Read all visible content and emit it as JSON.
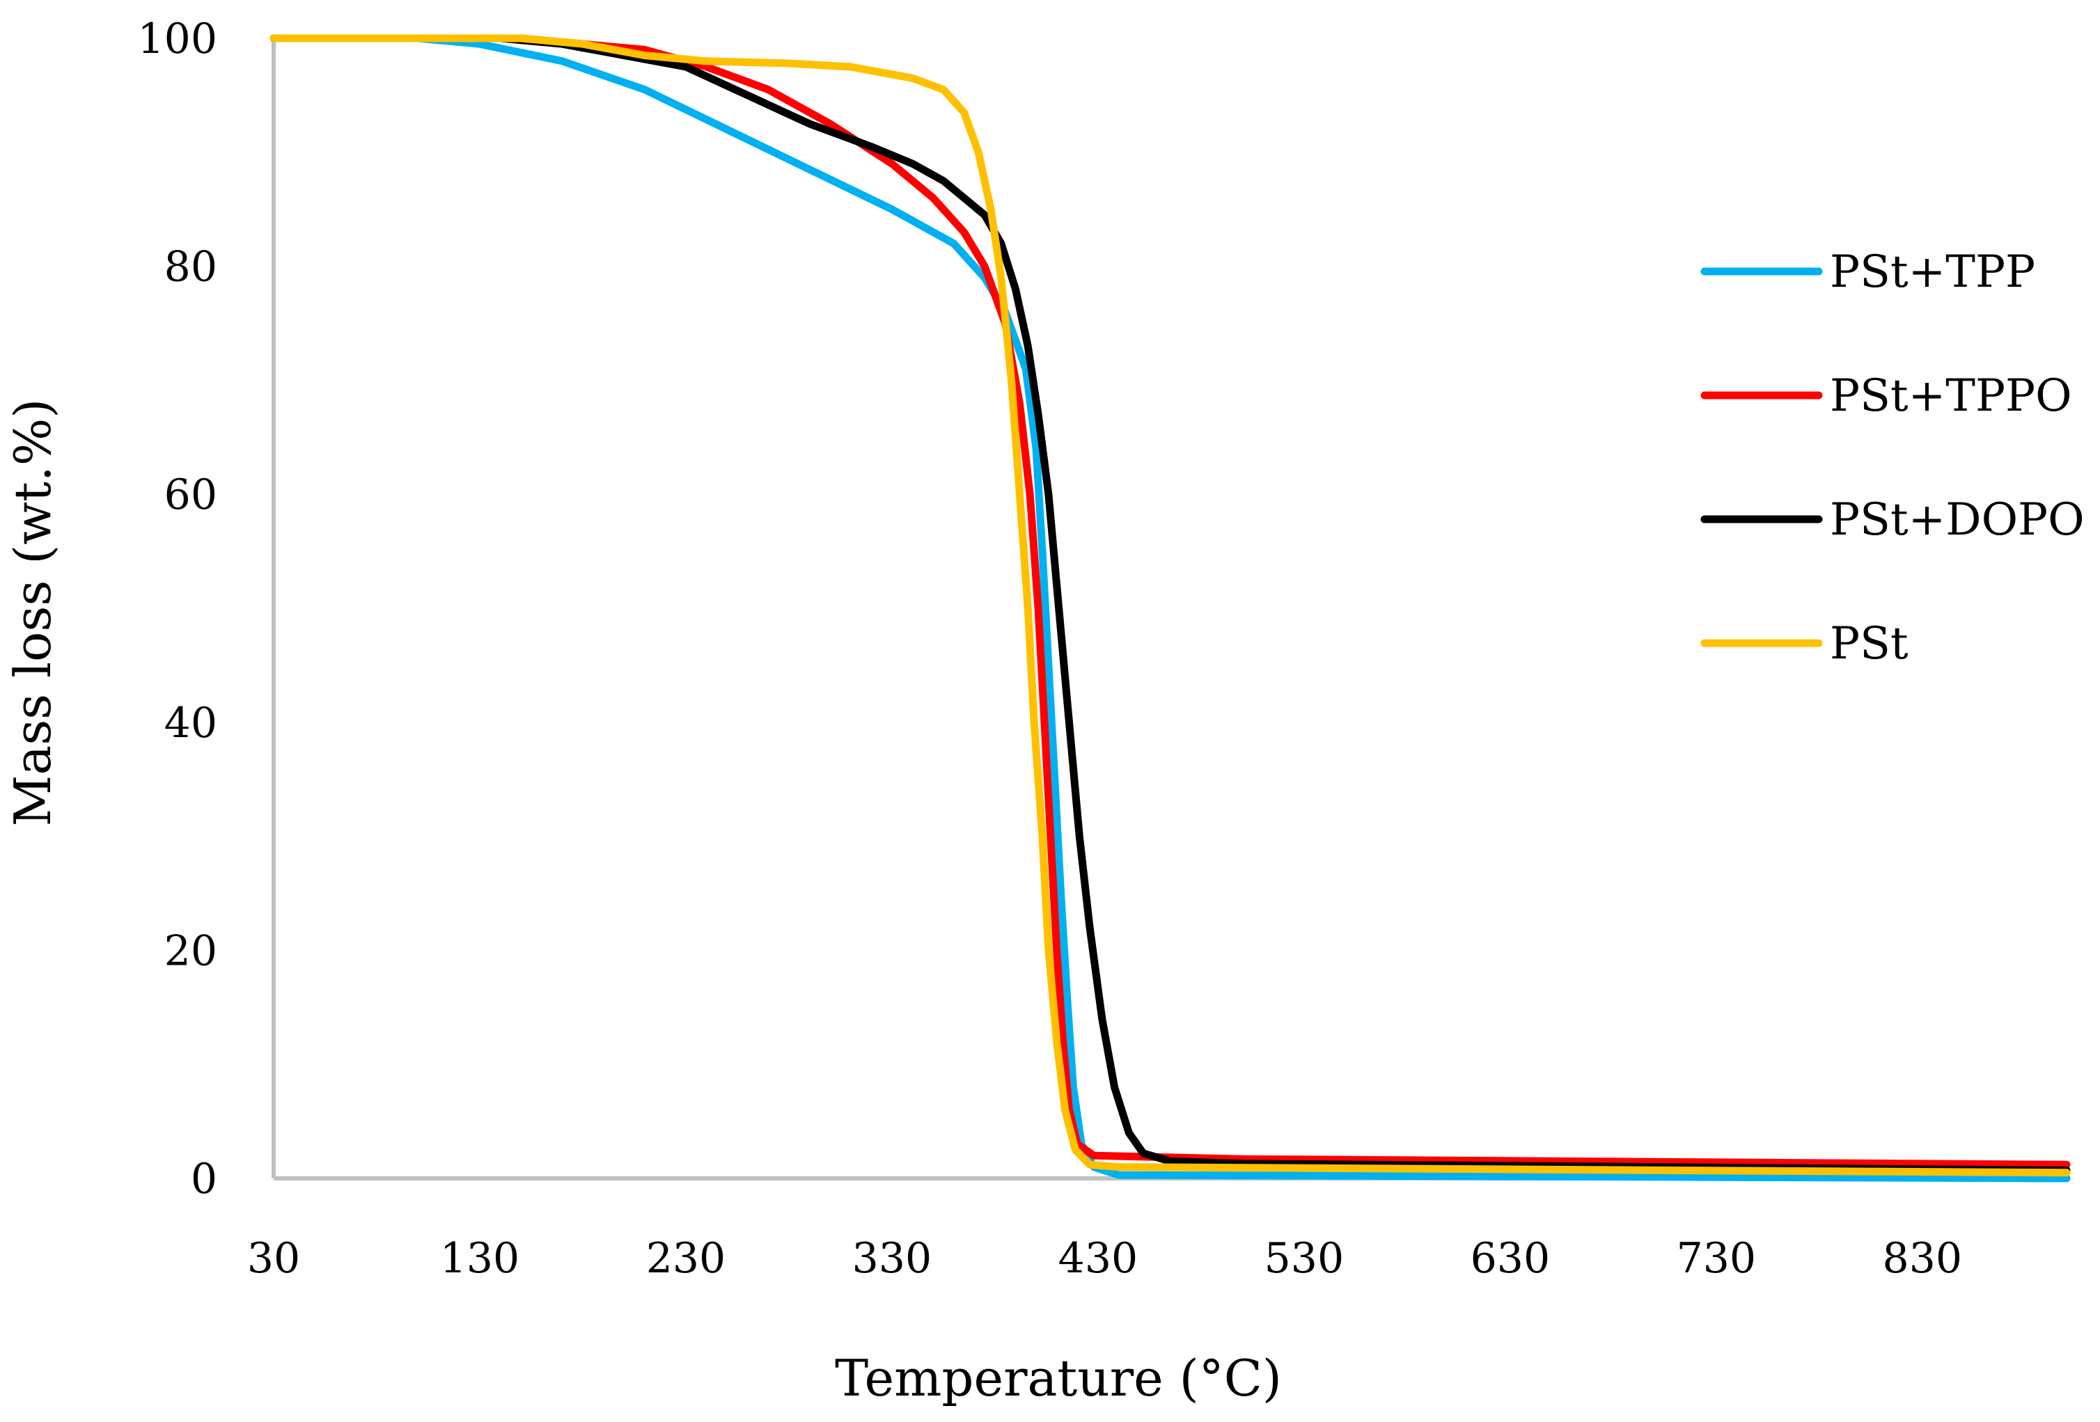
{
  "chart_data": {
    "type": "line",
    "title": "",
    "xlabel": "Temperature (°C)",
    "ylabel": "Mass loss (wt.%)",
    "xlim": [
      30,
      900
    ],
    "ylim": [
      0,
      100
    ],
    "x_ticks": [
      30,
      130,
      230,
      330,
      430,
      530,
      630,
      730,
      830
    ],
    "y_ticks": [
      0,
      20,
      40,
      60,
      80,
      100
    ],
    "grid": false,
    "legend_position": "right",
    "series": [
      {
        "name": "PSt+TPP",
        "color": "#00b0f0",
        "points": [
          [
            30,
            100
          ],
          [
            100,
            100
          ],
          [
            130,
            99.5
          ],
          [
            170,
            98
          ],
          [
            210,
            95.5
          ],
          [
            250,
            92
          ],
          [
            290,
            88.5
          ],
          [
            330,
            85
          ],
          [
            360,
            82
          ],
          [
            375,
            79
          ],
          [
            385,
            76
          ],
          [
            395,
            71
          ],
          [
            400,
            64
          ],
          [
            403,
            55
          ],
          [
            406,
            45
          ],
          [
            409,
            35
          ],
          [
            412,
            25
          ],
          [
            415,
            16
          ],
          [
            418,
            8
          ],
          [
            422,
            3
          ],
          [
            428,
            1
          ],
          [
            440,
            0.3
          ],
          [
            900,
            0
          ]
        ]
      },
      {
        "name": "PSt+TPPO",
        "color": "#ff0000",
        "points": [
          [
            30,
            100
          ],
          [
            150,
            100
          ],
          [
            180,
            99.5
          ],
          [
            210,
            99
          ],
          [
            240,
            97.5
          ],
          [
            270,
            95.5
          ],
          [
            300,
            92.5
          ],
          [
            330,
            89
          ],
          [
            350,
            86
          ],
          [
            365,
            83
          ],
          [
            375,
            80
          ],
          [
            385,
            75
          ],
          [
            392,
            68
          ],
          [
            397,
            60
          ],
          [
            401,
            50
          ],
          [
            404,
            40
          ],
          [
            407,
            30
          ],
          [
            410,
            20
          ],
          [
            413,
            12
          ],
          [
            416,
            6
          ],
          [
            420,
            3
          ],
          [
            428,
            2
          ],
          [
            500,
            1.7
          ],
          [
            900,
            1.2
          ]
        ]
      },
      {
        "name": "PSt+DOPO",
        "color": "#000000",
        "points": [
          [
            30,
            100
          ],
          [
            140,
            100
          ],
          [
            170,
            99.5
          ],
          [
            200,
            98.5
          ],
          [
            230,
            97.5
          ],
          [
            260,
            95
          ],
          [
            290,
            92.5
          ],
          [
            320,
            90.5
          ],
          [
            340,
            89
          ],
          [
            355,
            87.5
          ],
          [
            365,
            86
          ],
          [
            375,
            84.5
          ],
          [
            383,
            82
          ],
          [
            390,
            78
          ],
          [
            396,
            73
          ],
          [
            401,
            67
          ],
          [
            406,
            60
          ],
          [
            411,
            50
          ],
          [
            416,
            40
          ],
          [
            421,
            30
          ],
          [
            426,
            22
          ],
          [
            432,
            14
          ],
          [
            438,
            8
          ],
          [
            445,
            4
          ],
          [
            452,
            2.2
          ],
          [
            465,
            1.5
          ],
          [
            500,
            1.3
          ],
          [
            900,
            0.7
          ]
        ]
      },
      {
        "name": "PSt",
        "color": "#ffc000",
        "points": [
          [
            30,
            100
          ],
          [
            150,
            100
          ],
          [
            180,
            99.5
          ],
          [
            210,
            98.5
          ],
          [
            240,
            98
          ],
          [
            280,
            97.8
          ],
          [
            310,
            97.5
          ],
          [
            340,
            96.5
          ],
          [
            355,
            95.5
          ],
          [
            365,
            93.5
          ],
          [
            372,
            90
          ],
          [
            378,
            85
          ],
          [
            383,
            79
          ],
          [
            388,
            70
          ],
          [
            392,
            60
          ],
          [
            396,
            50
          ],
          [
            399,
            40
          ],
          [
            403,
            30
          ],
          [
            406,
            20
          ],
          [
            410,
            12
          ],
          [
            414,
            6
          ],
          [
            419,
            2.5
          ],
          [
            426,
            1.2
          ],
          [
            440,
            1
          ],
          [
            900,
            0.5
          ]
        ]
      }
    ]
  }
}
